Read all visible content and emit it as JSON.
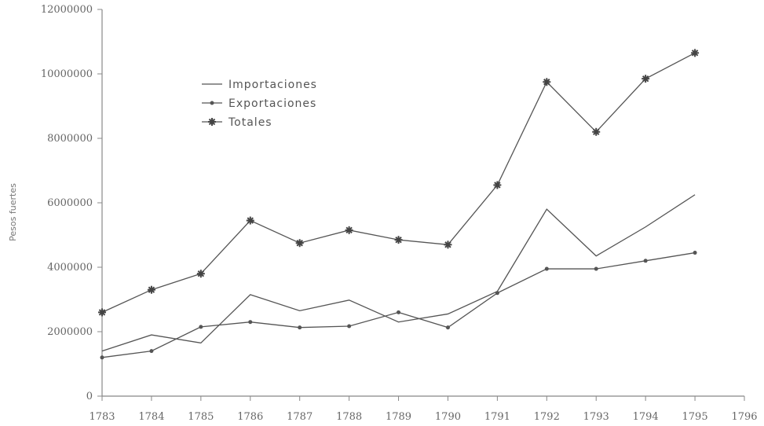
{
  "chart_data": {
    "type": "line",
    "title": "",
    "xlabel": "",
    "ylabel": "Pesos fuertes",
    "x": [
      1783,
      1784,
      1785,
      1786,
      1787,
      1788,
      1789,
      1790,
      1791,
      1792,
      1793,
      1794,
      1795
    ],
    "x_ticks": [
      "1783",
      "1784",
      "1785",
      "1786",
      "1787",
      "1788",
      "1789",
      "1790",
      "1791",
      "1792",
      "1793",
      "1794",
      "1795",
      "1796"
    ],
    "xlim": [
      1783,
      1796
    ],
    "y_ticks": [
      "0",
      "2000000",
      "4000000",
      "6000000",
      "8000000",
      "10000000",
      "12000000"
    ],
    "ylim": [
      0,
      12000000
    ],
    "grid": false,
    "legend_position": "upper-left-center",
    "series": [
      {
        "name": "Importaciones",
        "marker": "none",
        "values": [
          1400000,
          1900000,
          1650000,
          3150000,
          2650000,
          2980000,
          2300000,
          2550000,
          3250000,
          5800000,
          4350000,
          5250000,
          6250000
        ]
      },
      {
        "name": "Exportaciones",
        "marker": "dot",
        "values": [
          1200000,
          1400000,
          2150000,
          2300000,
          2130000,
          2170000,
          2600000,
          2130000,
          3200000,
          3950000,
          3950000,
          4200000,
          4450000
        ]
      },
      {
        "name": "Totales",
        "marker": "star",
        "values": [
          2600000,
          3300000,
          3800000,
          5450000,
          4750000,
          5150000,
          4850000,
          4700000,
          6550000,
          9750000,
          8200000,
          9850000,
          10650000
        ]
      }
    ],
    "colors": {
      "line": "#555555",
      "axis": "#888888",
      "text": "#666666"
    }
  }
}
